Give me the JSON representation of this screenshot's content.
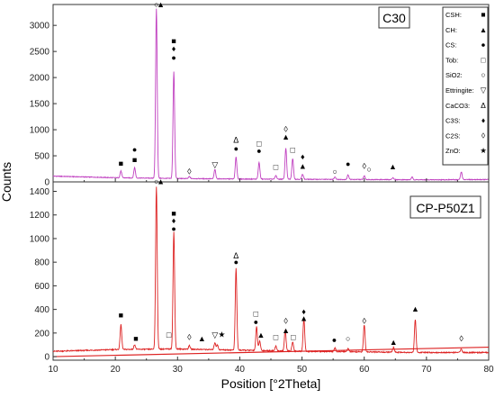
{
  "chart_data": {
    "type": "line",
    "xlabel": "Position [°2Theta]",
    "ylabel": "Counts",
    "xlim": [
      10,
      80
    ],
    "x_ticks": [
      "10",
      "20",
      "30",
      "40",
      "50",
      "60",
      "70",
      "80"
    ],
    "legend": {
      "placement": "top-right",
      "entries": [
        {
          "label": "CSH:",
          "symbol": "■"
        },
        {
          "label": "CH:",
          "symbol": "▲"
        },
        {
          "label": "CS:",
          "symbol": "●"
        },
        {
          "label": "Tob:",
          "symbol": "□"
        },
        {
          "label": "SiO2:",
          "symbol": "○"
        },
        {
          "label": "Ettringite:",
          "symbol": "▽"
        },
        {
          "label": "CaCO3:",
          "symbol": "Δ"
        },
        {
          "label": "C3S:",
          "symbol": "♦"
        },
        {
          "label": "C2S:",
          "symbol": "◊"
        },
        {
          "label": "ZnO:",
          "symbol": "★"
        }
      ]
    },
    "panels": [
      {
        "label": "C30",
        "color": "#c040c0",
        "ylim": [
          0,
          3400
        ],
        "y_ticks": [
          "0",
          "500",
          "1000",
          "1500",
          "2000",
          "2500",
          "3000"
        ],
        "baseline_x": [
          10,
          20,
          30,
          40,
          50,
          60,
          70,
          80
        ],
        "baseline_y": [
          110,
          80,
          65,
          55,
          50,
          45,
          40,
          45
        ],
        "peaks": [
          {
            "x": 20.9,
            "h": 130
          },
          {
            "x": 23.1,
            "h": 200
          },
          {
            "x": 26.6,
            "h": 3250
          },
          {
            "x": 29.4,
            "h": 2050
          },
          {
            "x": 31.9,
            "h": 40
          },
          {
            "x": 36.0,
            "h": 180
          },
          {
            "x": 39.4,
            "h": 420
          },
          {
            "x": 43.1,
            "h": 320
          },
          {
            "x": 45.8,
            "h": 70
          },
          {
            "x": 47.4,
            "h": 600
          },
          {
            "x": 48.5,
            "h": 400
          },
          {
            "x": 50.1,
            "h": 100
          },
          {
            "x": 55.3,
            "h": 50
          },
          {
            "x": 57.4,
            "h": 90
          },
          {
            "x": 60.0,
            "h": 70
          },
          {
            "x": 64.6,
            "h": 40
          },
          {
            "x": 67.7,
            "h": 50
          },
          {
            "x": 75.6,
            "h": 150
          }
        ],
        "annotations": [
          {
            "x": 20.9,
            "y": 300,
            "symbol": "■"
          },
          {
            "x": 23.1,
            "y": 370,
            "symbol": "■"
          },
          {
            "x": 23.1,
            "y": 570,
            "symbol": "●"
          },
          {
            "x": 26.6,
            "y": 3350,
            "symbol": "○"
          },
          {
            "x": 27.3,
            "y": 3350,
            "symbol": "▲"
          },
          {
            "x": 29.4,
            "y": 2650,
            "symbol": "■"
          },
          {
            "x": 29.4,
            "y": 2500,
            "symbol": "♦"
          },
          {
            "x": 29.4,
            "y": 2330,
            "symbol": "●"
          },
          {
            "x": 31.9,
            "y": 150,
            "symbol": "◊"
          },
          {
            "x": 36.0,
            "y": 280,
            "symbol": "▽"
          },
          {
            "x": 39.4,
            "y": 750,
            "symbol": "Δ"
          },
          {
            "x": 39.4,
            "y": 590,
            "symbol": "●"
          },
          {
            "x": 43.1,
            "y": 680,
            "symbol": "□"
          },
          {
            "x": 43.1,
            "y": 540,
            "symbol": "●"
          },
          {
            "x": 45.8,
            "y": 230,
            "symbol": "□"
          },
          {
            "x": 47.4,
            "y": 960,
            "symbol": "◊"
          },
          {
            "x": 47.4,
            "y": 810,
            "symbol": "▲"
          },
          {
            "x": 48.5,
            "y": 560,
            "symbol": "□"
          },
          {
            "x": 50.1,
            "y": 430,
            "symbol": "♦"
          },
          {
            "x": 50.1,
            "y": 250,
            "symbol": "▲"
          },
          {
            "x": 55.3,
            "y": 150,
            "symbol": "○"
          },
          {
            "x": 57.4,
            "y": 290,
            "symbol": "●"
          },
          {
            "x": 60.0,
            "y": 250,
            "symbol": "◊"
          },
          {
            "x": 60.8,
            "y": 190,
            "symbol": "○"
          },
          {
            "x": 64.6,
            "y": 240,
            "symbol": "▲"
          },
          {
            "x": 75.6,
            "y": 400,
            "symbol": "◊"
          }
        ]
      },
      {
        "label": "CP-P50Z1",
        "color": "#dd2222",
        "ylim": [
          -30,
          1480
        ],
        "y_ticks": [
          "0",
          "200",
          "400",
          "600",
          "800",
          "1000",
          "1200",
          "1400"
        ],
        "baseline_x": [
          10,
          20,
          30,
          40,
          50,
          60,
          70,
          80
        ],
        "baseline_y": [
          45,
          60,
          65,
          55,
          45,
          40,
          35,
          35
        ],
        "reference_line": {
          "x": [
            10,
            80
          ],
          "y": [
            0,
            80
          ]
        },
        "peaks": [
          {
            "x": 20.9,
            "h": 210
          },
          {
            "x": 23.1,
            "h": 40
          },
          {
            "x": 26.6,
            "h": 1380
          },
          {
            "x": 29.4,
            "h": 990
          },
          {
            "x": 31.9,
            "h": 30
          },
          {
            "x": 36.0,
            "h": 60
          },
          {
            "x": 36.4,
            "h": 40
          },
          {
            "x": 39.4,
            "h": 690
          },
          {
            "x": 42.7,
            "h": 200
          },
          {
            "x": 43.2,
            "h": 80
          },
          {
            "x": 45.8,
            "h": 40
          },
          {
            "x": 47.3,
            "h": 180
          },
          {
            "x": 48.5,
            "h": 80
          },
          {
            "x": 50.3,
            "h": 280
          },
          {
            "x": 55.3,
            "h": 30
          },
          {
            "x": 57.4,
            "h": 30
          },
          {
            "x": 60.0,
            "h": 230
          },
          {
            "x": 64.7,
            "h": 40
          },
          {
            "x": 68.2,
            "h": 280
          },
          {
            "x": 75.6,
            "h": 30
          }
        ],
        "annotations": [
          {
            "x": 20.9,
            "y": 330,
            "symbol": "■"
          },
          {
            "x": 23.3,
            "y": 130,
            "symbol": "■"
          },
          {
            "x": 26.6,
            "y": 1460,
            "symbol": "○"
          },
          {
            "x": 27.3,
            "y": 1460,
            "symbol": "▲"
          },
          {
            "x": 29.4,
            "y": 1190,
            "symbol": "■"
          },
          {
            "x": 29.4,
            "y": 1130,
            "symbol": "♦"
          },
          {
            "x": 29.4,
            "y": 1060,
            "symbol": "●"
          },
          {
            "x": 28.6,
            "y": 160,
            "symbol": "□"
          },
          {
            "x": 31.9,
            "y": 140,
            "symbol": "◊"
          },
          {
            "x": 33.9,
            "y": 130,
            "symbol": "▲"
          },
          {
            "x": 36.0,
            "y": 160,
            "symbol": "▽"
          },
          {
            "x": 37.1,
            "y": 165,
            "symbol": "★"
          },
          {
            "x": 39.4,
            "y": 830,
            "symbol": "Δ"
          },
          {
            "x": 39.4,
            "y": 780,
            "symbol": "●"
          },
          {
            "x": 42.6,
            "y": 340,
            "symbol": "□"
          },
          {
            "x": 42.6,
            "y": 270,
            "symbol": "●"
          },
          {
            "x": 43.4,
            "y": 160,
            "symbol": "▲"
          },
          {
            "x": 45.8,
            "y": 140,
            "symbol": "□"
          },
          {
            "x": 47.4,
            "y": 280,
            "symbol": "◊"
          },
          {
            "x": 47.4,
            "y": 200,
            "symbol": "▲"
          },
          {
            "x": 48.6,
            "y": 140,
            "symbol": "□"
          },
          {
            "x": 50.3,
            "y": 360,
            "symbol": "♦"
          },
          {
            "x": 50.3,
            "y": 300,
            "symbol": "▲"
          },
          {
            "x": 55.2,
            "y": 120,
            "symbol": "●"
          },
          {
            "x": 57.4,
            "y": 130,
            "symbol": "○"
          },
          {
            "x": 60.0,
            "y": 280,
            "symbol": "◊"
          },
          {
            "x": 64.7,
            "y": 100,
            "symbol": "▲"
          },
          {
            "x": 68.2,
            "y": 380,
            "symbol": "▲"
          },
          {
            "x": 75.6,
            "y": 130,
            "symbol": "◊"
          }
        ]
      }
    ]
  }
}
